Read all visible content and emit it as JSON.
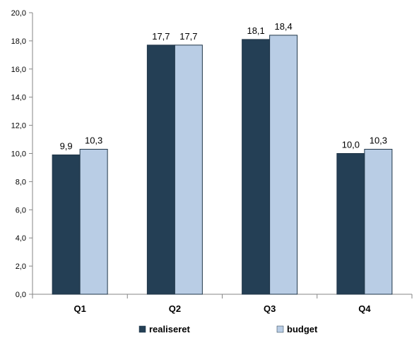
{
  "chart_data": {
    "type": "bar",
    "categories": [
      "Q1",
      "Q2",
      "Q3",
      "Q4"
    ],
    "series": [
      {
        "name": "realiseret",
        "values": [
          9.9,
          17.7,
          18.1,
          10.0
        ],
        "labels": [
          "9,9",
          "17,7",
          "18,1",
          "10,0"
        ],
        "color": "#243f55"
      },
      {
        "name": "budget",
        "values": [
          10.3,
          17.7,
          18.4,
          10.3
        ],
        "labels": [
          "10,3",
          "17,7",
          "18,4",
          "10,3"
        ],
        "color": "#b9cde5"
      }
    ],
    "yticks": [
      0,
      2,
      4,
      6,
      8,
      10,
      12,
      14,
      16,
      18,
      20
    ],
    "ytick_labels": [
      "0,0",
      "2,0",
      "4,0",
      "6,0",
      "8,0",
      "10,0",
      "12,0",
      "14,0",
      "16,0",
      "18,0",
      "20,0"
    ],
    "ylim": [
      0,
      20
    ],
    "grid": false,
    "legend_position": "bottom",
    "title": "",
    "xlabel": "",
    "ylabel": ""
  }
}
